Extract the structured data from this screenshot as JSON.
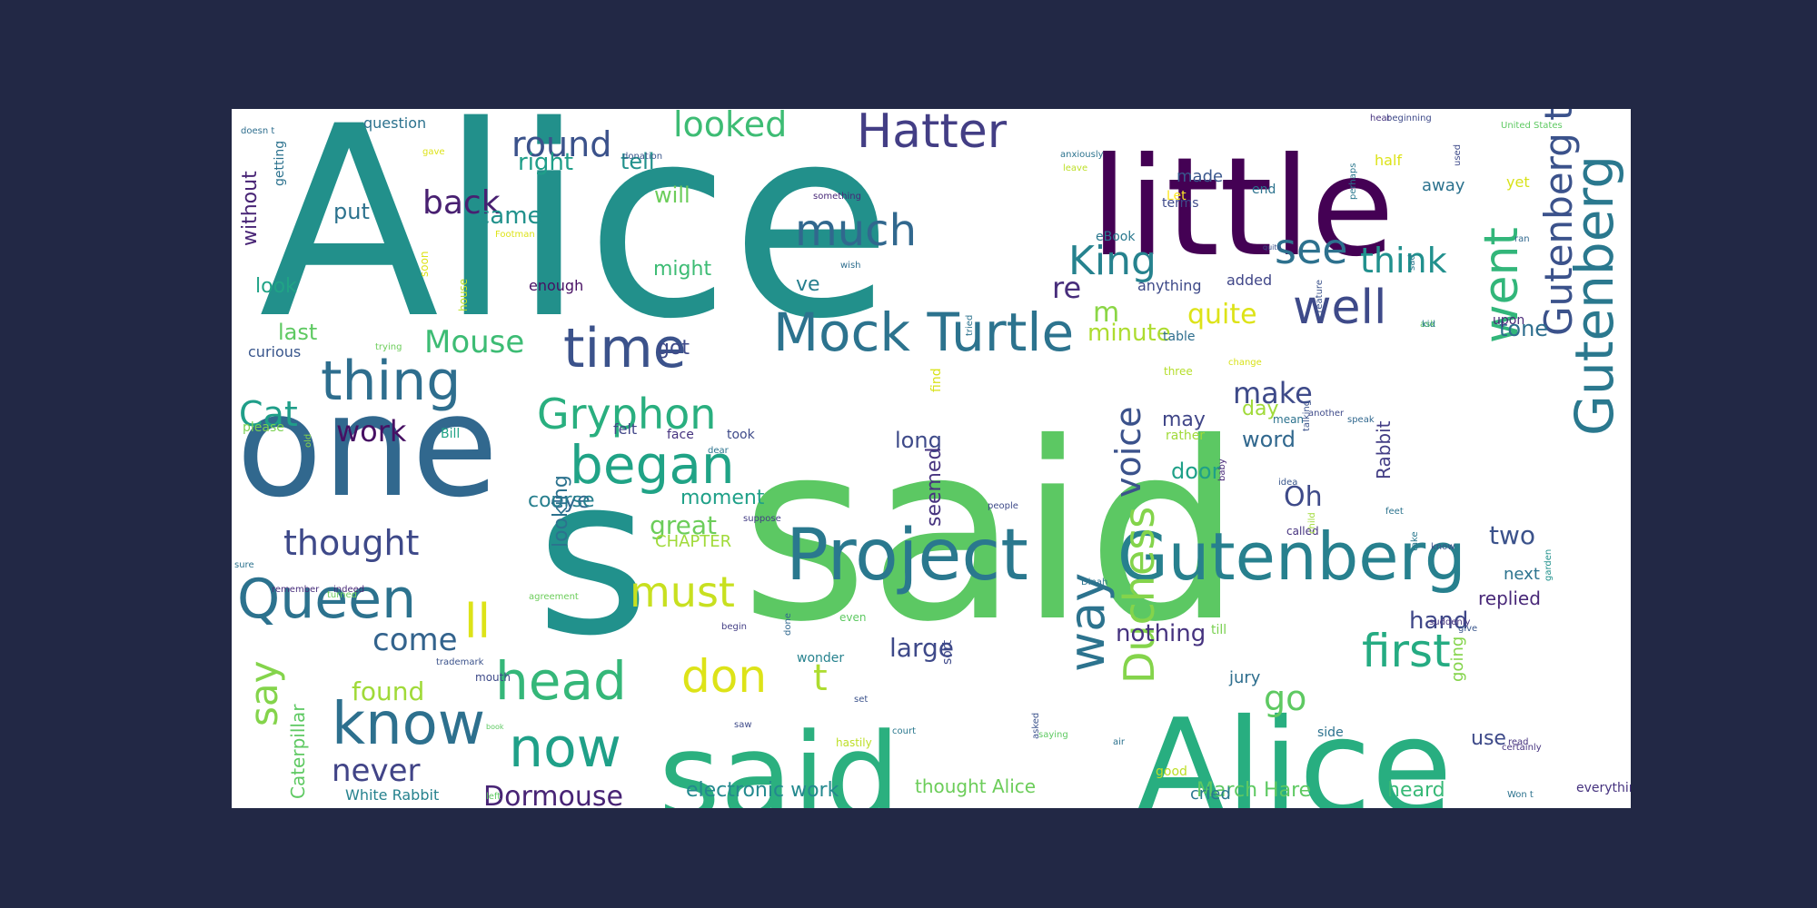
{
  "colors": {
    "background": "#222845",
    "canvas": "#ffffff",
    "palette": [
      "#440154",
      "#46327e",
      "#365c8d",
      "#277f8e",
      "#1fa187",
      "#4ac16d",
      "#a0da39",
      "#fde725"
    ]
  },
  "words": [
    {
      "text": "Alice",
      "color": "#22908b"
    },
    {
      "text": "said",
      "color": "#5cc863"
    },
    {
      "text": "little",
      "color": "#440154"
    },
    {
      "text": "s",
      "color": "#21918c"
    },
    {
      "text": "one",
      "color": "#31688e"
    },
    {
      "text": "said",
      "color": "#2bb07f"
    },
    {
      "text": "Alice",
      "color": "#28ae80"
    },
    {
      "text": "Project",
      "color": "#2a788e"
    },
    {
      "text": "Gutenberg",
      "color": "#27808e"
    },
    {
      "text": "Mock Turtle",
      "color": "#2c738e"
    },
    {
      "text": "Hatter",
      "color": "#433e85"
    },
    {
      "text": "time",
      "color": "#3b528b"
    },
    {
      "text": "thing",
      "color": "#2e6e8e"
    },
    {
      "text": "began",
      "color": "#20a386"
    },
    {
      "text": "Queen",
      "color": "#2c728e"
    },
    {
      "text": "know",
      "color": "#2d708e"
    },
    {
      "text": "head",
      "color": "#35b779"
    },
    {
      "text": "now",
      "color": "#1fa088"
    },
    {
      "text": "well",
      "color": "#3e4a89"
    },
    {
      "text": "King",
      "color": "#26828e"
    },
    {
      "text": "see",
      "color": "#2d718e"
    },
    {
      "text": "much",
      "color": "#31688e"
    },
    {
      "text": "Gryphon",
      "color": "#29af7f"
    },
    {
      "text": "Gutenberg tm",
      "color": "#3b528b"
    },
    {
      "text": "went",
      "color": "#32b67a"
    },
    {
      "text": "don",
      "color": "#dde318"
    },
    {
      "text": "t",
      "color": "#addc30"
    },
    {
      "text": "must",
      "color": "#c8e020"
    },
    {
      "text": "way",
      "color": "#2c738e"
    },
    {
      "text": "first",
      "color": "#25ab82"
    },
    {
      "text": "Duchess",
      "color": "#84d44b"
    },
    {
      "text": "Gutenberg",
      "color": "#2a788e"
    },
    {
      "text": "Mouse",
      "color": "#3dbc74"
    },
    {
      "text": "looked",
      "color": "#3dbc74"
    },
    {
      "text": "round",
      "color": "#3b528b"
    },
    {
      "text": "back",
      "color": "#482071"
    },
    {
      "text": "think",
      "color": "#21908d"
    },
    {
      "text": "thought",
      "color": "#3e4989"
    },
    {
      "text": "say",
      "color": "#84d44b"
    },
    {
      "text": "Cat",
      "color": "#1f9e89"
    },
    {
      "text": "ll",
      "color": "#dde318"
    },
    {
      "text": "come",
      "color": "#33638d"
    },
    {
      "text": "go",
      "color": "#5ec962"
    },
    {
      "text": "work",
      "color": "#471063"
    },
    {
      "text": "voice",
      "color": "#3b528b"
    },
    {
      "text": "make",
      "color": "#3e4a89"
    },
    {
      "text": "quite",
      "color": "#dde318"
    },
    {
      "text": "never",
      "color": "#414487"
    },
    {
      "text": "Dormouse",
      "color": "#482475"
    },
    {
      "text": "found",
      "color": "#a0da39"
    },
    {
      "text": "large",
      "color": "#3e4989"
    },
    {
      "text": "great",
      "color": "#6ccd5a"
    },
    {
      "text": "Oh",
      "color": "#3e4a89"
    },
    {
      "text": "two",
      "color": "#3b528b"
    },
    {
      "text": "re",
      "color": "#472d7b"
    },
    {
      "text": "m",
      "color": "#8bd646"
    },
    {
      "text": "minute",
      "color": "#addc30"
    },
    {
      "text": "tone",
      "color": "#2e6e8e"
    },
    {
      "text": "hand",
      "color": "#3f4788"
    },
    {
      "text": "nothing",
      "color": "#46337f"
    },
    {
      "text": "put",
      "color": "#2c728e"
    },
    {
      "text": "came",
      "color": "#21918c"
    },
    {
      "text": "will",
      "color": "#6ccd5a"
    },
    {
      "text": "right",
      "color": "#1f9e89"
    },
    {
      "text": "tell",
      "color": "#21918c"
    },
    {
      "text": "got",
      "color": "#3e4a89"
    },
    {
      "text": "last",
      "color": "#5ec962"
    },
    {
      "text": "look",
      "color": "#20a386"
    },
    {
      "text": "might",
      "color": "#3dbc74"
    },
    {
      "text": "ve",
      "color": "#277f8e"
    },
    {
      "text": "eye",
      "color": "#31688e"
    },
    {
      "text": "long",
      "color": "#3e4a89"
    },
    {
      "text": "word",
      "color": "#31688e"
    },
    {
      "text": "door",
      "color": "#1fa088"
    },
    {
      "text": "may",
      "color": "#404688"
    },
    {
      "text": "day",
      "color": "#a0da39"
    },
    {
      "text": "course",
      "color": "#277f8e"
    },
    {
      "text": "looking",
      "color": "#2c728e"
    },
    {
      "text": "moment",
      "color": "#1fa088"
    },
    {
      "text": "seemed",
      "color": "#46337f"
    },
    {
      "text": "Rabbit",
      "color": "#433e85"
    },
    {
      "text": "CHAPTER",
      "color": "#a0da39"
    },
    {
      "text": "electronic work",
      "color": "#23898e"
    },
    {
      "text": "thought Alice",
      "color": "#6ccd5a"
    },
    {
      "text": "March Hare",
      "color": "#5ec962"
    },
    {
      "text": "heard",
      "color": "#38b977"
    },
    {
      "text": "replied",
      "color": "#482878"
    },
    {
      "text": "next",
      "color": "#2c738e"
    },
    {
      "text": "use",
      "color": "#3e4a89"
    },
    {
      "text": "going",
      "color": "#84d44b"
    },
    {
      "text": "jury",
      "color": "#2e6e8e"
    },
    {
      "text": "cried",
      "color": "#2a788e"
    },
    {
      "text": "Caterpillar",
      "color": "#5ec962"
    },
    {
      "text": "White Rabbit",
      "color": "#26828e"
    },
    {
      "text": "without",
      "color": "#482475"
    },
    {
      "text": "question",
      "color": "#2c728e"
    },
    {
      "text": "made",
      "color": "#39568c"
    },
    {
      "text": "away",
      "color": "#2c728e"
    },
    {
      "text": "yet",
      "color": "#d8e219"
    },
    {
      "text": "half",
      "color": "#dde318"
    },
    {
      "text": "terms",
      "color": "#3e4a89"
    },
    {
      "text": "Let",
      "color": "#fde725"
    },
    {
      "text": "end",
      "color": "#2c728e"
    },
    {
      "text": "added",
      "color": "#404688"
    },
    {
      "text": "anything",
      "color": "#3e4a89"
    },
    {
      "text": "table",
      "color": "#2e6e8e"
    },
    {
      "text": "upon",
      "color": "#482878"
    },
    {
      "text": "eBook",
      "color": "#2a788e"
    },
    {
      "text": "enough",
      "color": "#471063"
    },
    {
      "text": "curious",
      "color": "#39568c"
    },
    {
      "text": "please",
      "color": "#7ad151"
    },
    {
      "text": "rather",
      "color": "#a0da39"
    },
    {
      "text": "felt",
      "color": "#404688"
    },
    {
      "text": "face",
      "color": "#46337f"
    },
    {
      "text": "took",
      "color": "#3e4a89"
    },
    {
      "text": "Bill",
      "color": "#20a386"
    },
    {
      "text": "three",
      "color": "#b5de2b"
    },
    {
      "text": "find",
      "color": "#d8e219"
    },
    {
      "text": "side",
      "color": "#2c728e"
    },
    {
      "text": "good",
      "color": "#bddf26"
    },
    {
      "text": "till",
      "color": "#7ad151"
    },
    {
      "text": "wonder",
      "color": "#26828e"
    },
    {
      "text": "sort",
      "color": "#3e4989"
    },
    {
      "text": "mean",
      "color": "#2c728e"
    },
    {
      "text": "called",
      "color": "#46337f"
    },
    {
      "text": "getting",
      "color": "#2c728e"
    },
    {
      "text": "soon",
      "color": "#dde318"
    },
    {
      "text": "house",
      "color": "#bddf26"
    },
    {
      "text": "wish",
      "color": "#2e6e8e"
    },
    {
      "text": "trying",
      "color": "#6ccd5a"
    },
    {
      "text": "creature",
      "color": "#3b528b"
    },
    {
      "text": "United States",
      "color": "#5ec962"
    },
    {
      "text": "beginning",
      "color": "#3e4a89"
    },
    {
      "text": "anxiously",
      "color": "#2c738e"
    },
    {
      "text": "something",
      "color": "#482878"
    },
    {
      "text": "donation",
      "color": "#39568c"
    },
    {
      "text": "hear",
      "color": "#46337f"
    },
    {
      "text": "Footman",
      "color": "#dde318"
    },
    {
      "text": "quite",
      "color": "#3b528b"
    },
    {
      "text": "perhaps",
      "color": "#2a788e"
    },
    {
      "text": "begin",
      "color": "#433e85"
    },
    {
      "text": "even",
      "color": "#5ec962"
    },
    {
      "text": "done",
      "color": "#31688e"
    },
    {
      "text": "Dinah",
      "color": "#2c738e"
    },
    {
      "text": "suddenly",
      "color": "#46337f"
    },
    {
      "text": "remember",
      "color": "#472d7b"
    },
    {
      "text": "turned",
      "color": "#6ccd5a"
    },
    {
      "text": "indeed",
      "color": "#482878"
    },
    {
      "text": "agreement",
      "color": "#6ccd5a"
    },
    {
      "text": "idea",
      "color": "#39568c"
    },
    {
      "text": "baby",
      "color": "#482878"
    },
    {
      "text": "people",
      "color": "#3e4a89"
    },
    {
      "text": "Won t",
      "color": "#2c728e"
    },
    {
      "text": "everything",
      "color": "#46337f"
    },
    {
      "text": "certainly",
      "color": "#46337f"
    },
    {
      "text": "garden",
      "color": "#21918c"
    },
    {
      "text": "child",
      "color": "#a0da39"
    },
    {
      "text": "talking",
      "color": "#3b528b"
    },
    {
      "text": "speak",
      "color": "#31688e"
    },
    {
      "text": "another",
      "color": "#3e4a89"
    },
    {
      "text": "change",
      "color": "#d8e219"
    },
    {
      "text": "tried",
      "color": "#2c738e"
    },
    {
      "text": "asked",
      "color": "#3b528b"
    },
    {
      "text": "hastily",
      "color": "#bddf26"
    },
    {
      "text": "saying",
      "color": "#5ec962"
    },
    {
      "text": "court",
      "color": "#2a788e"
    },
    {
      "text": "saw",
      "color": "#3e4a89"
    },
    {
      "text": "book",
      "color": "#5ec962"
    },
    {
      "text": "trademark",
      "color": "#3b528b"
    },
    {
      "text": "mouth",
      "color": "#3e4a89"
    },
    {
      "text": "suppose",
      "color": "#433e85"
    },
    {
      "text": "dear",
      "color": "#2c738e"
    },
    {
      "text": "old",
      "color": "#84d44b"
    },
    {
      "text": "doesn t",
      "color": "#2e6e8e"
    },
    {
      "text": "gave",
      "color": "#dde318"
    },
    {
      "text": "leave",
      "color": "#bddf26"
    },
    {
      "text": "give",
      "color": "#39568c"
    },
    {
      "text": "left",
      "color": "#5ec962"
    },
    {
      "text": "sure",
      "color": "#2c728e"
    },
    {
      "text": "used",
      "color": "#3e4a89"
    },
    {
      "text": "sad",
      "color": "#2a788e"
    },
    {
      "text": "ran",
      "color": "#31688e"
    },
    {
      "text": "set",
      "color": "#3b528b"
    },
    {
      "text": "feet",
      "color": "#2c738e"
    },
    {
      "text": "air",
      "color": "#2c728e"
    },
    {
      "text": "read",
      "color": "#46337f"
    },
    {
      "text": "ask",
      "color": "#5ec962"
    },
    {
      "text": "kid",
      "color": "#2a788e"
    },
    {
      "text": "know",
      "color": "#3b528b"
    },
    {
      "text": "take",
      "color": "#2a788e"
    }
  ]
}
